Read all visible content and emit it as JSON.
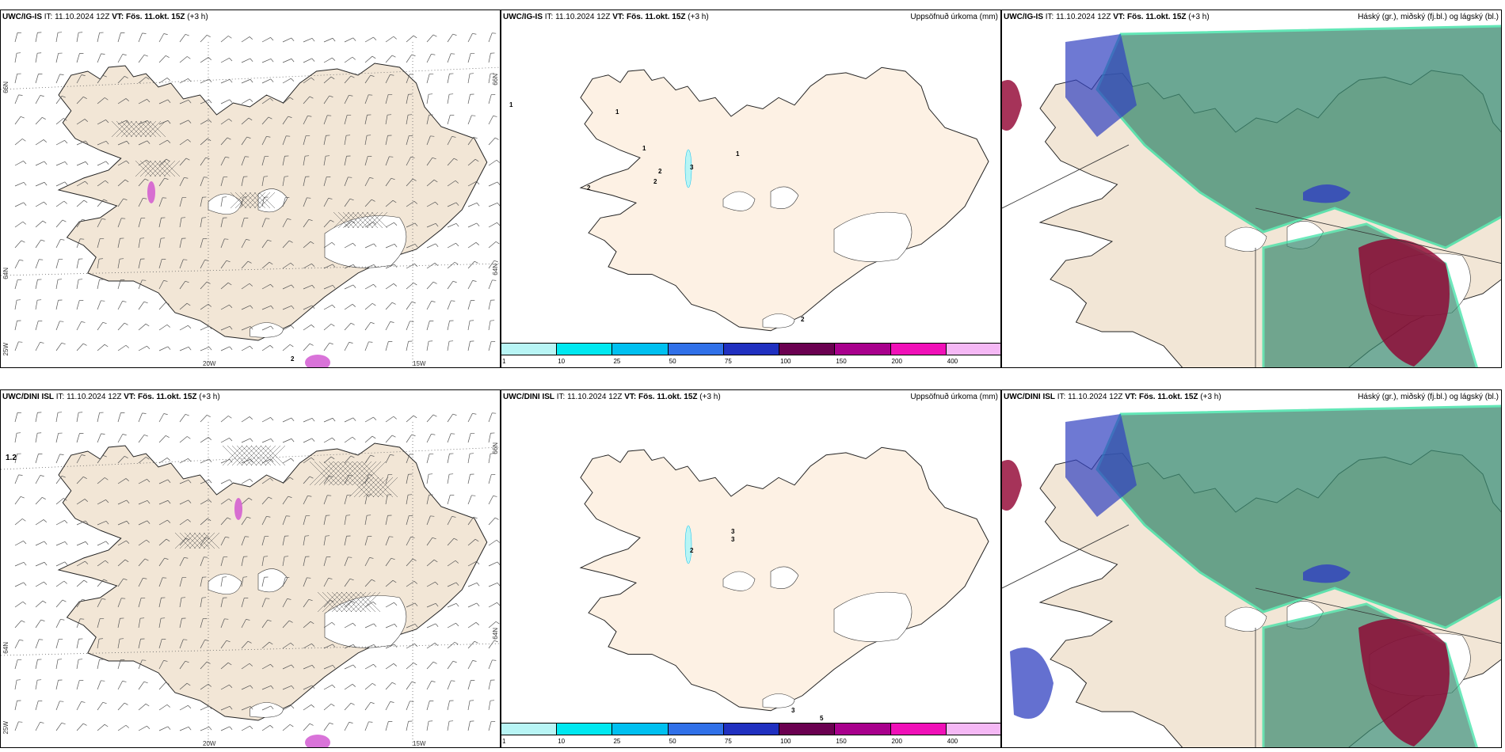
{
  "panels": {
    "p1": {
      "model": "UWC/IG-IS",
      "it_label": "IT:",
      "it": "11.10.2024 12Z",
      "vt_label": "VT:",
      "vt": "Fös. 11.okt. 15Z",
      "lead": "(+3 h)",
      "right": ""
    },
    "p2": {
      "model": "UWC/IG-IS",
      "it_label": "IT:",
      "it": "11.10.2024 12Z",
      "vt_label": "VT:",
      "vt": "Fös. 11.okt. 15Z",
      "lead": "(+3 h)",
      "right": "Uppsöfnuð úrkoma (mm)"
    },
    "p3": {
      "model": "UWC/IG-IS",
      "it_label": "IT:",
      "it": "11.10.2024 12Z",
      "vt_label": "VT:",
      "vt": "Fös. 11.okt. 15Z",
      "lead": "(+3 h)",
      "right": "Háský (gr.), miðský (fj.bl.) og lágský (bl.)"
    },
    "p4": {
      "model": "UWC/DINI ISL",
      "it_label": "IT:",
      "it": "11.10.2024 12Z",
      "vt_label": "VT:",
      "vt": "Fös. 11.okt. 15Z",
      "lead": "(+3 h)",
      "right": ""
    },
    "p5": {
      "model": "UWC/DINI ISL",
      "it_label": "IT:",
      "it": "11.10.2024 12Z",
      "vt_label": "VT:",
      "vt": "Fös. 11.okt. 15Z",
      "lead": "(+3 h)",
      "right": "Uppsöfnuð úrkoma (mm)"
    },
    "p6": {
      "model": "UWC/DINI ISL",
      "it_label": "IT:",
      "it": "11.10.2024 12Z",
      "vt_label": "VT:",
      "vt": "Fös. 11.okt. 15Z",
      "lead": "(+3 h)",
      "right": "Háský (gr.), miðský (fj.bl.) og lágský (bl.)"
    }
  },
  "axes": {
    "lat_66": "66N",
    "lat_64": "64N",
    "lon_25": "25W",
    "lon_20": "20W",
    "lon_15": "15W"
  },
  "colorbar": {
    "colors": [
      "#b8f5f5",
      "#00e8f0",
      "#00c0f0",
      "#3070e8",
      "#2030c0",
      "#6a0050",
      "#a8008c",
      "#f010b8",
      "#f5b8f5"
    ],
    "ticks": [
      "1",
      "10",
      "25",
      "50",
      "75",
      "100",
      "150",
      "200",
      "400"
    ]
  },
  "precip_labels_top": [
    "1",
    "1",
    "1",
    "2",
    "2",
    "3",
    "1",
    "2",
    "2"
  ],
  "precip_labels_bottom": [
    "2",
    "3",
    "3",
    "3",
    "5"
  ],
  "wind_label_bottom": "1.2",
  "wind_label_top": "2",
  "colors": {
    "land": "#f2e6d6",
    "land_precip": "#fdf1e4",
    "ocean": "#ffffff",
    "cloud_high": "#3a8a70",
    "cloud_mid": "#3040c0",
    "cloud_low": "#900030"
  }
}
